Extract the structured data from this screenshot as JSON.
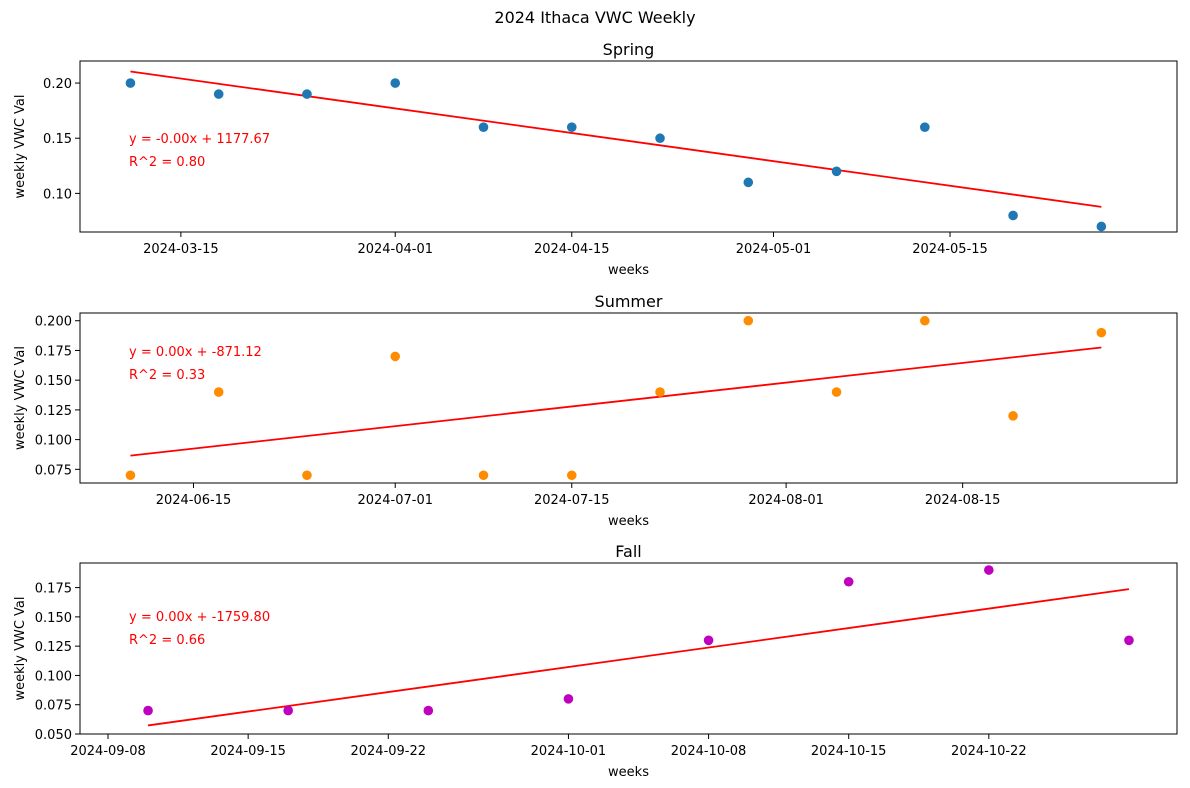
{
  "figure": {
    "suptitle": "2024 Ithaca VWC Weekly"
  },
  "colors": {
    "fit_line": "#ff0000",
    "spring": "#1f77b4",
    "summer": "#ff8c00",
    "fall": "#bf00bf",
    "axes": "#000000",
    "background": "#ffffff"
  },
  "chart_data": [
    {
      "type": "scatter",
      "title": "Spring",
      "xlabel": "weeks",
      "ylabel": "weekly VWC Val",
      "xlim": [
        "2024-03-07",
        "2024-06-02"
      ],
      "ylim": [
        0.065,
        0.22
      ],
      "x_ticks": [
        "2024-03-15",
        "2024-04-01",
        "2024-04-15",
        "2024-05-01",
        "2024-05-15"
      ],
      "y_ticks": [
        "0.10",
        "0.15",
        "0.20"
      ],
      "grid": false,
      "series": [
        {
          "x": [
            "2024-03-11",
            "2024-03-18",
            "2024-03-25",
            "2024-04-01",
            "2024-04-08",
            "2024-04-15",
            "2024-04-22",
            "2024-04-29",
            "2024-05-06",
            "2024-05-13",
            "2024-05-20",
            "2024-05-27"
          ],
          "y": [
            0.2,
            0.19,
            0.19,
            0.2,
            0.16,
            0.16,
            0.15,
            0.11,
            0.12,
            0.16,
            0.08,
            0.07
          ]
        }
      ],
      "fit": {
        "x": [
          "2024-03-11",
          "2024-05-27"
        ],
        "y": [
          0.2105,
          0.0878
        ]
      },
      "annotations": [
        "y = -0.00x + 1177.67",
        "R^2 = 0.80"
      ]
    },
    {
      "type": "scatter",
      "title": "Summer",
      "xlabel": "weeks",
      "ylabel": "weekly VWC Val",
      "xlim": [
        "2024-06-06",
        "2024-09-01"
      ],
      "ylim": [
        0.0635,
        0.2065
      ],
      "x_ticks": [
        "2024-06-15",
        "2024-07-01",
        "2024-07-15",
        "2024-08-01",
        "2024-08-15"
      ],
      "y_ticks": [
        "0.075",
        "0.100",
        "0.125",
        "0.150",
        "0.175",
        "0.200"
      ],
      "grid": false,
      "series": [
        {
          "x": [
            "2024-06-10",
            "2024-06-17",
            "2024-06-24",
            "2024-07-01",
            "2024-07-08",
            "2024-07-15",
            "2024-07-22",
            "2024-07-29",
            "2024-08-05",
            "2024-08-12",
            "2024-08-19",
            "2024-08-26"
          ],
          "y": [
            0.07,
            0.14,
            0.07,
            0.17,
            0.07,
            0.07,
            0.14,
            0.2,
            0.14,
            0.2,
            0.12,
            0.19
          ]
        }
      ],
      "fit": {
        "x": [
          "2024-06-10",
          "2024-08-26"
        ],
        "y": [
          0.0865,
          0.1775
        ]
      },
      "annotations": [
        "y = 0.00x + -871.12",
        "R^2 = 0.33"
      ]
    },
    {
      "type": "scatter",
      "title": "Fall",
      "xlabel": "weeks",
      "ylabel": "weekly VWC Val",
      "xlim": [
        "2024-09-06.6",
        "2024-10-31.4"
      ],
      "ylim": [
        0.05,
        0.196
      ],
      "x_ticks": [
        "2024-09-08",
        "2024-09-15",
        "2024-09-22",
        "2024-10-01",
        "2024-10-08",
        "2024-10-15",
        "2024-10-22"
      ],
      "y_ticks": [
        "0.050",
        "0.075",
        "0.100",
        "0.125",
        "0.150",
        "0.175"
      ],
      "grid": false,
      "series": [
        {
          "x": [
            "2024-09-10",
            "2024-09-17",
            "2024-09-24",
            "2024-10-01",
            "2024-10-08",
            "2024-10-15",
            "2024-10-22",
            "2024-10-29"
          ],
          "y": [
            0.07,
            0.07,
            0.07,
            0.08,
            0.13,
            0.18,
            0.19,
            0.13
          ]
        }
      ],
      "fit": {
        "x": [
          "2024-09-10",
          "2024-10-29"
        ],
        "y": [
          0.0573,
          0.1737
        ]
      },
      "annotations": [
        "y = 0.00x + -1759.80",
        "R^2 = 0.66"
      ]
    }
  ]
}
